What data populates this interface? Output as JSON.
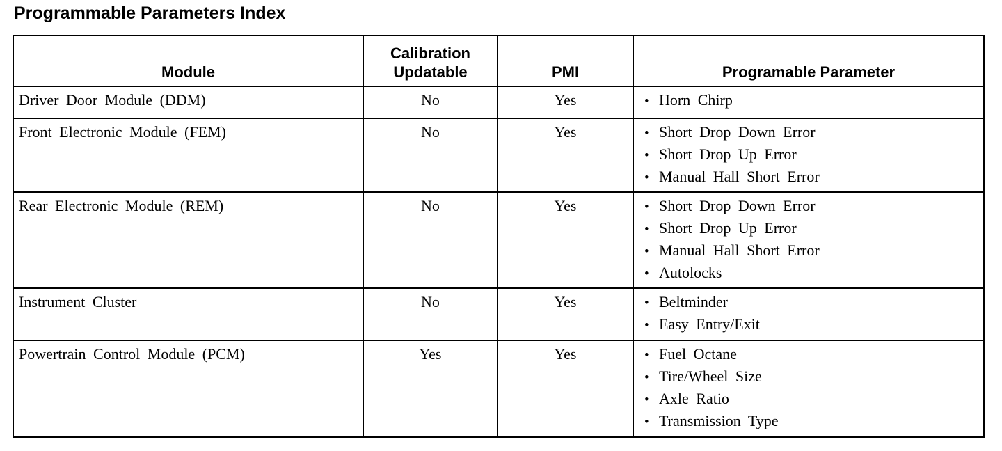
{
  "page": {
    "title": "Programmable Parameters Index"
  },
  "table": {
    "bullet_char": "•",
    "colors": {
      "text": "#000000",
      "border": "#000000",
      "background": "#ffffff"
    },
    "columns": [
      {
        "label": "Module"
      },
      {
        "label": "Calibration Updatable"
      },
      {
        "label": "PMI"
      },
      {
        "label": "Programable Parameter"
      }
    ],
    "rows": [
      {
        "module": "Driver Door Module (DDM)",
        "calibration_updatable": "No",
        "pmi": "Yes",
        "parameters": [
          "Horn Chirp"
        ]
      },
      {
        "module": "Front Electronic Module (FEM)",
        "calibration_updatable": "No",
        "pmi": "Yes",
        "parameters": [
          "Short Drop Down Error",
          "Short Drop Up Error",
          "Manual Hall Short Error"
        ]
      },
      {
        "module": "Rear Electronic Module (REM)",
        "calibration_updatable": "No",
        "pmi": "Yes",
        "parameters": [
          "Short Drop Down Error",
          "Short Drop Up Error",
          "Manual Hall Short Error",
          "Autolocks"
        ]
      },
      {
        "module": "Instrument Cluster",
        "calibration_updatable": "No",
        "pmi": "Yes",
        "parameters": [
          "Beltminder",
          "Easy Entry/Exit"
        ]
      },
      {
        "module": "Powertrain Control Module (PCM)",
        "calibration_updatable": "Yes",
        "pmi": "Yes",
        "parameters": [
          "Fuel Octane",
          "Tire/Wheel Size",
          "Axle Ratio",
          "Transmission Type"
        ]
      }
    ]
  }
}
